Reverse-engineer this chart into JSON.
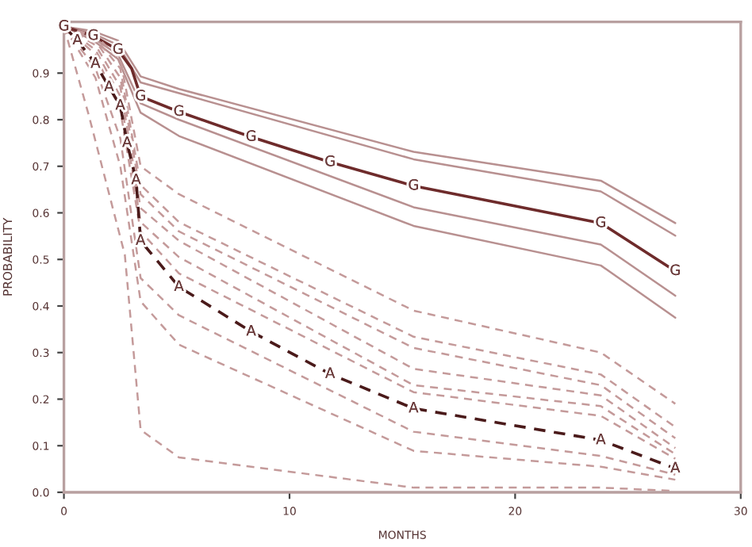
{
  "chart_data": {
    "type": "line",
    "xlabel": "MONTHS",
    "ylabel": "PROBABILITY",
    "xlim": [
      0,
      30
    ],
    "xticks": [
      0,
      10,
      20,
      30
    ],
    "ylim": [
      0,
      1.01
    ],
    "yticks": [
      {
        "value": 0,
        "label": "0.0"
      },
      0.1,
      0.2,
      0.3,
      0.4,
      0.5,
      0.6,
      0.7,
      0.8,
      0.9
    ],
    "grid": false,
    "legend": false,
    "marker": "none",
    "series": [
      {
        "color": "#b89090",
        "line_style": "solid",
        "x": [
          0,
          1.3,
          2.4,
          3.4,
          5.1,
          15.5,
          23.8,
          27.1
        ],
        "values": [
          1.0,
          0.99,
          0.97,
          0.893,
          0.866,
          0.731,
          0.669,
          0.578
        ]
      },
      {
        "color": "#b89090",
        "line_style": "solid",
        "x": [
          0,
          1.3,
          2.4,
          3.4,
          5.1,
          15.5,
          23.8,
          27.1
        ],
        "values": [
          1.0,
          0.985,
          0.96,
          0.88,
          0.857,
          0.715,
          0.646,
          0.551
        ]
      },
      {
        "color": "#b89090",
        "line_style": "solid",
        "x": [
          0,
          1.3,
          2.4,
          3.4,
          5.1,
          15.5,
          23.8,
          27.1
        ],
        "values": [
          1.0,
          0.975,
          0.94,
          0.835,
          0.8,
          0.612,
          0.532,
          0.422
        ]
      },
      {
        "color": "#b89090",
        "line_style": "solid",
        "x": [
          0,
          1.3,
          2.4,
          3.4,
          5.1,
          15.5,
          23.8,
          27.1
        ],
        "values": [
          1.0,
          0.97,
          0.93,
          0.815,
          0.765,
          0.572,
          0.487,
          0.375
        ]
      },
      {
        "color": "#6e2b2b",
        "line_style": "solid",
        "x": [
          0,
          1.3,
          2.4,
          3.0,
          3.4,
          5.1,
          8.3,
          11.8,
          15.5,
          23.8,
          27.1
        ],
        "values": [
          1.0,
          0.98,
          0.95,
          0.91,
          0.85,
          0.817,
          0.763,
          0.709,
          0.658,
          0.578,
          0.475
        ]
      },
      {
        "color": "#c49a9a",
        "line_style": "dashed",
        "x": [
          0,
          1.4,
          2.5,
          3.4,
          5.1,
          15.5,
          23.8,
          27.1
        ],
        "values": [
          1.0,
          0.98,
          0.93,
          0.7,
          0.64,
          0.39,
          0.3,
          0.19
        ]
      },
      {
        "color": "#c49a9a",
        "line_style": "dashed",
        "x": [
          0,
          1.4,
          2.5,
          3.4,
          5.1,
          15.5,
          23.8,
          27.1
        ],
        "values": [
          1.0,
          0.975,
          0.91,
          0.66,
          0.58,
          0.334,
          0.253,
          0.14
        ]
      },
      {
        "color": "#c49a9a",
        "line_style": "dashed",
        "x": [
          0,
          1.4,
          2.5,
          3.4,
          5.1,
          15.5,
          23.8,
          27.1
        ],
        "values": [
          1.0,
          0.97,
          0.89,
          0.64,
          0.56,
          0.31,
          0.23,
          0.116
        ]
      },
      {
        "color": "#c49a9a",
        "line_style": "dashed",
        "x": [
          0,
          1.4,
          2.5,
          3.4,
          5.1,
          15.5,
          23.8,
          27.1
        ],
        "values": [
          1.0,
          0.96,
          0.87,
          0.61,
          0.54,
          0.265,
          0.208,
          0.095
        ]
      },
      {
        "color": "#c49a9a",
        "line_style": "dashed",
        "x": [
          0,
          1.4,
          2.5,
          3.4,
          5.1,
          15.5,
          23.8,
          27.1
        ],
        "values": [
          1.0,
          0.95,
          0.85,
          0.58,
          0.505,
          0.23,
          0.185,
          0.082
        ]
      },
      {
        "color": "#c49a9a",
        "line_style": "dashed",
        "x": [
          0,
          1.4,
          2.5,
          3.4,
          5.1,
          15.5,
          23.8,
          27.1
        ],
        "values": [
          1.0,
          0.94,
          0.82,
          0.56,
          0.47,
          0.215,
          0.164,
          0.072
        ]
      },
      {
        "color": "#c49a9a",
        "line_style": "dashed",
        "x": [
          0,
          1.4,
          2.5,
          3.4,
          5.1,
          15.5,
          23.8,
          27.1
        ],
        "values": [
          1.0,
          0.91,
          0.76,
          0.46,
          0.38,
          0.13,
          0.078,
          0.038
        ]
      },
      {
        "color": "#c49a9a",
        "line_style": "dashed",
        "x": [
          0,
          1.4,
          2.5,
          3.4,
          5.1,
          15.5,
          23.8,
          27.1
        ],
        "values": [
          1.0,
          0.89,
          0.7,
          0.41,
          0.317,
          0.089,
          0.055,
          0.027
        ]
      },
      {
        "color": "#c49a9a",
        "line_style": "dashed",
        "x": [
          0,
          1.1,
          2.7,
          3.4,
          5.1,
          15.5,
          23.8,
          27.1
        ],
        "values": [
          1.0,
          0.81,
          0.51,
          0.134,
          0.075,
          0.01,
          0.01,
          0.003
        ]
      },
      {
        "color": "#4a1a1a",
        "line_style": "dashed",
        "x": [
          0,
          0.6,
          1.4,
          2.0,
          2.5,
          2.8,
          3.2,
          3.4,
          5.1,
          8.3,
          11.8,
          15.5,
          23.8,
          27.1
        ],
        "values": [
          1.0,
          0.97,
          0.92,
          0.87,
          0.83,
          0.75,
          0.67,
          0.54,
          0.441,
          0.345,
          0.254,
          0.18,
          0.112,
          0.051
        ]
      }
    ],
    "annotations": [
      {
        "text": "G",
        "x": 0,
        "y": 1.0
      },
      {
        "text": "G",
        "x": 1.3,
        "y": 0.98
      },
      {
        "text": "G",
        "x": 2.4,
        "y": 0.95
      },
      {
        "text": "G",
        "x": 3.4,
        "y": 0.85
      },
      {
        "text": "G",
        "x": 5.1,
        "y": 0.817
      },
      {
        "text": "G",
        "x": 8.3,
        "y": 0.763
      },
      {
        "text": "G",
        "x": 11.8,
        "y": 0.709
      },
      {
        "text": "G",
        "x": 15.5,
        "y": 0.658
      },
      {
        "text": "G",
        "x": 23.8,
        "y": 0.578
      },
      {
        "text": "G",
        "x": 27.1,
        "y": 0.475
      },
      {
        "text": "A",
        "x": 0.6,
        "y": 0.97
      },
      {
        "text": "A",
        "x": 1.4,
        "y": 0.92
      },
      {
        "text": "A",
        "x": 2.0,
        "y": 0.87
      },
      {
        "text": "A",
        "x": 2.5,
        "y": 0.83
      },
      {
        "text": "A",
        "x": 2.8,
        "y": 0.75
      },
      {
        "text": "A",
        "x": 3.2,
        "y": 0.67
      },
      {
        "text": "A",
        "x": 3.4,
        "y": 0.54
      },
      {
        "text": "A",
        "x": 5.1,
        "y": 0.441
      },
      {
        "text": "A",
        "x": 8.3,
        "y": 0.345
      },
      {
        "text": "A",
        "x": 11.8,
        "y": 0.254
      },
      {
        "text": "A",
        "x": 15.5,
        "y": 0.18
      },
      {
        "text": "A",
        "x": 23.8,
        "y": 0.112
      },
      {
        "text": "A",
        "x": 27.1,
        "y": 0.051
      }
    ]
  }
}
